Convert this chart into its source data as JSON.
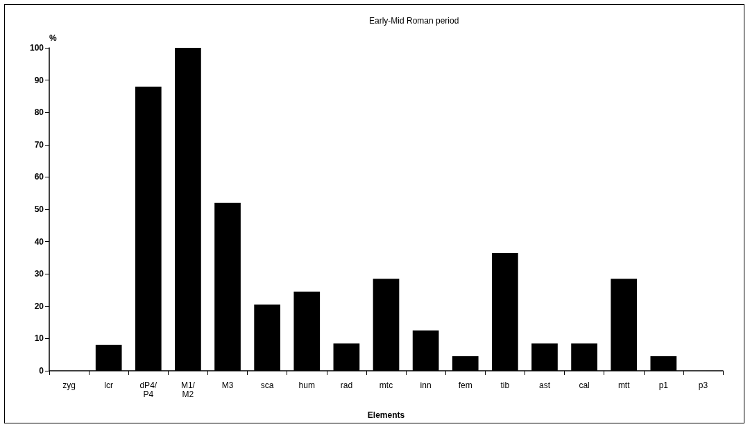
{
  "chart_data": {
    "type": "bar",
    "title": "Early-Mid Roman period",
    "xlabel": "Elements",
    "ylabel": "%",
    "categories": [
      "zyg",
      "lcr",
      "dP4/\nP4",
      "M1/\nM2",
      "M3",
      "sca",
      "hum",
      "rad",
      "mtc",
      "inn",
      "fem",
      "tib",
      "ast",
      "cal",
      "mtt",
      "p1",
      "p3"
    ],
    "values": [
      0,
      8,
      88,
      100,
      52,
      20.5,
      24.5,
      8.5,
      28.5,
      12.5,
      4.5,
      36.5,
      8.5,
      8.5,
      28.5,
      4.5,
      0
    ],
    "color": "#000000",
    "ylim": [
      0,
      100
    ],
    "yticks": [
      0,
      10,
      20,
      30,
      40,
      50,
      60,
      70,
      80,
      90,
      100
    ],
    "grid": false
  }
}
